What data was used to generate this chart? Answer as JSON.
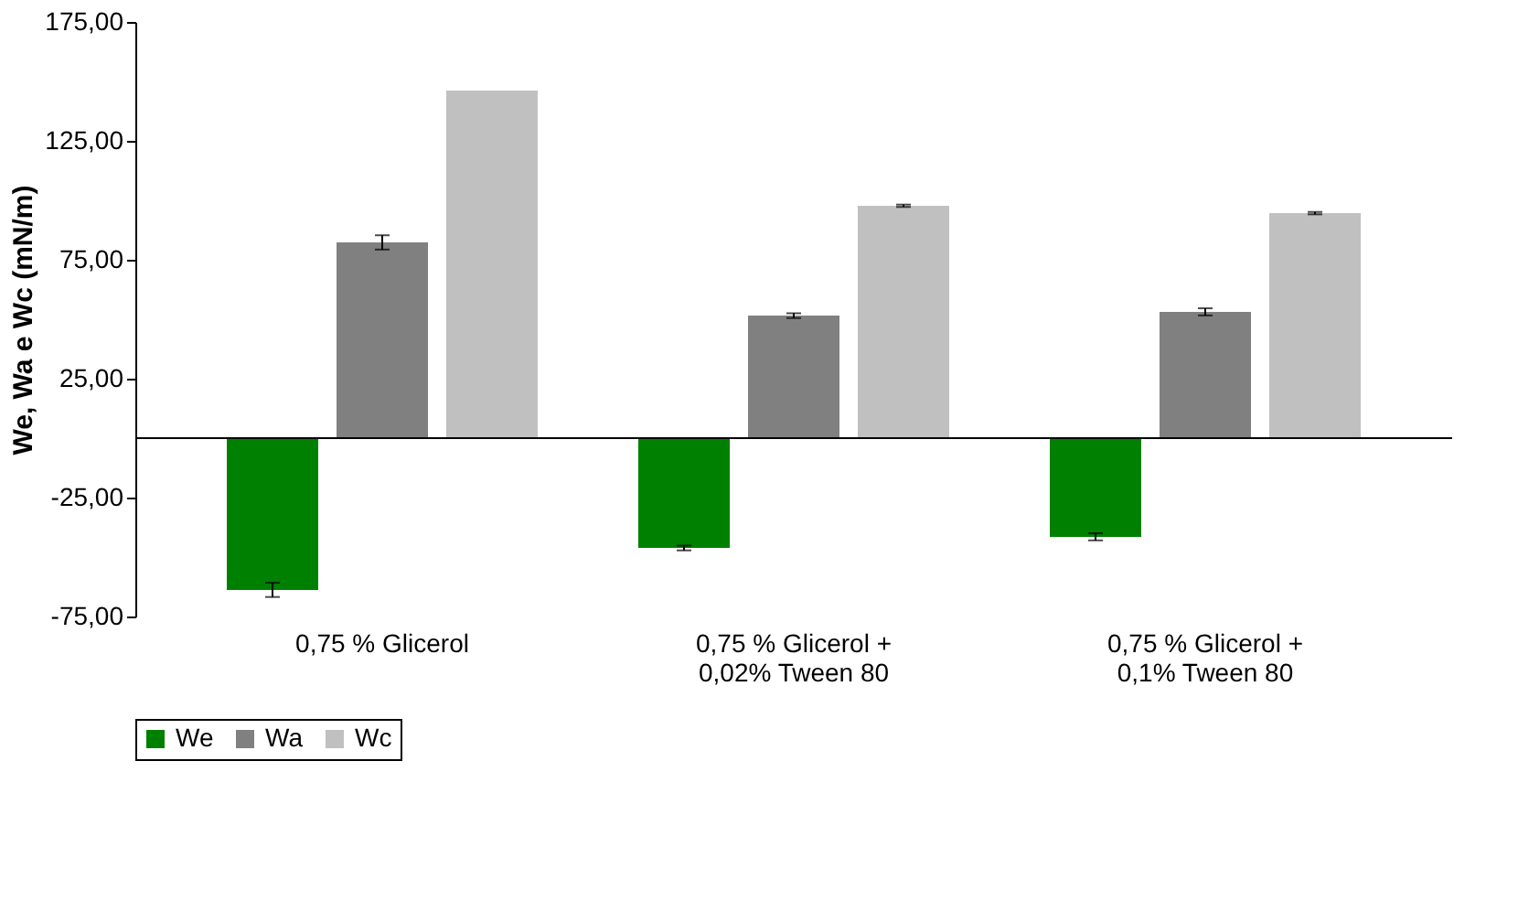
{
  "chart_data": {
    "type": "bar",
    "ylabel": "We, Wa e Wc (mN/m)",
    "categories": [
      "0,75 % Glicerol",
      "0,75 % Glicerol +\n0,02% Tween 80",
      "0,75 % Glicerol +\n0,1% Tween 80"
    ],
    "series": [
      {
        "name": "We",
        "color": "#008000",
        "values": [
          -63.8,
          -46.2,
          -41.5
        ],
        "errors": [
          3,
          1,
          1.5
        ]
      },
      {
        "name": "Wa",
        "color": "#808080",
        "values": [
          82.3,
          51.5,
          53.1
        ],
        "errors": [
          3,
          1,
          1.5
        ]
      },
      {
        "name": "Wc",
        "color": "#c0c0c0",
        "values": [
          146.2,
          97.7,
          94.6
        ],
        "errors": [
          null,
          0.5,
          0.5
        ]
      }
    ],
    "ylim": [
      -75,
      175
    ],
    "yticks": [
      {
        "value": -75,
        "label": "-75,00"
      },
      {
        "value": -25,
        "label": "-25,00"
      },
      {
        "value": 25,
        "label": "25,00"
      },
      {
        "value": 75,
        "label": "75,00"
      },
      {
        "value": 125,
        "label": "125,00"
      },
      {
        "value": 175,
        "label": "175,00"
      }
    ],
    "legend": "bottom",
    "grid": false
  }
}
